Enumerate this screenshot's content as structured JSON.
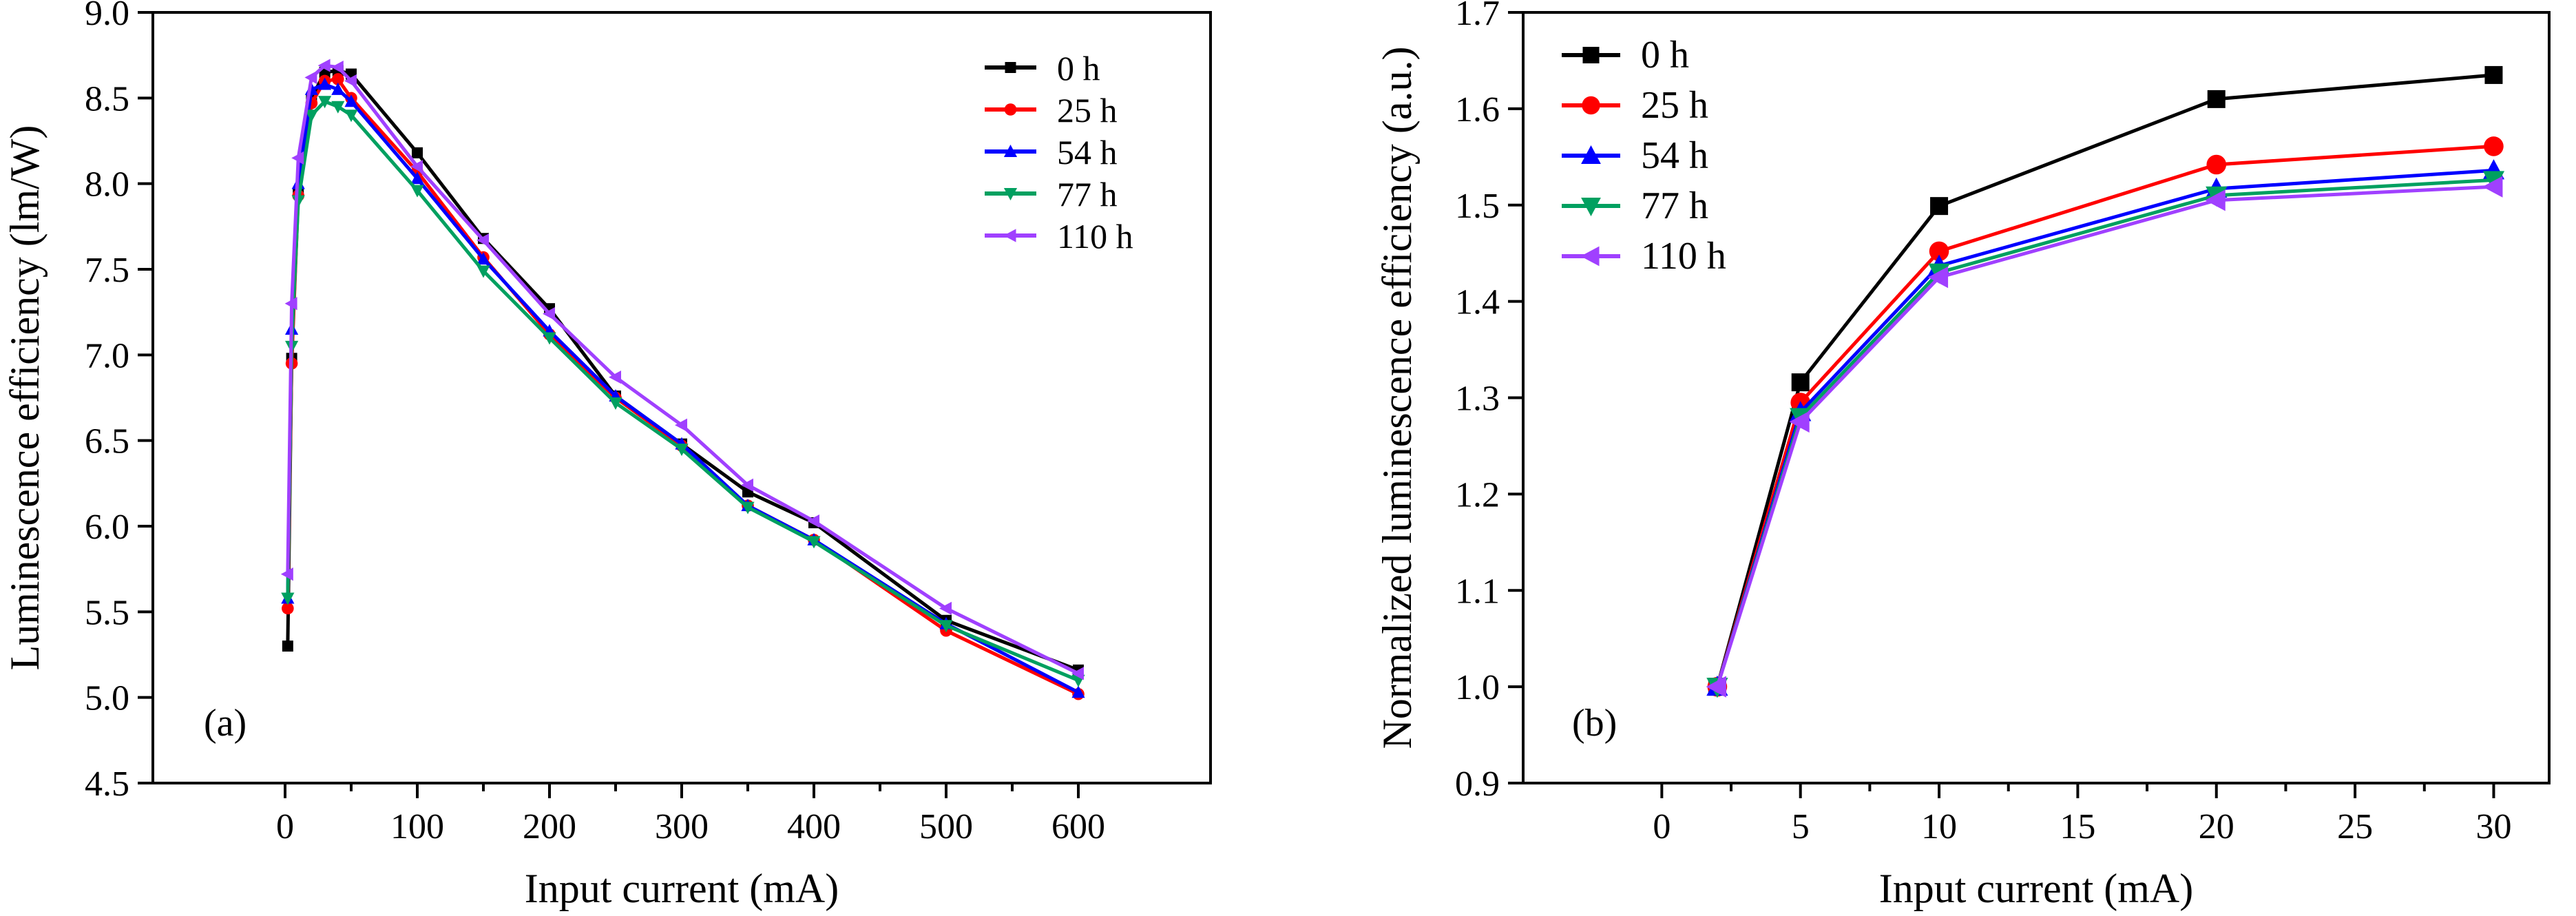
{
  "chart_data": [
    {
      "panel": "(a)",
      "type": "line",
      "xlabel": "Input current (mA)",
      "ylabel": "Luminescence efficiency (lm/W)",
      "xlim": [
        -100,
        700
      ],
      "ylim": [
        4.5,
        9.0
      ],
      "xticks": [
        "0",
        "100",
        "200",
        "300",
        "400",
        "500",
        "600"
      ],
      "yticks": [
        "4.5",
        "5.0",
        "5.5",
        "6.0",
        "6.5",
        "7.0",
        "7.5",
        "8.0",
        "8.5",
        "9.0"
      ],
      "grid": false,
      "legend_position": "top-right",
      "x": [
        2,
        5,
        10,
        20,
        30,
        40,
        50,
        100,
        150,
        200,
        250,
        300,
        350,
        400,
        500,
        600
      ],
      "series": [
        {
          "name": "0 h",
          "color": "#000000",
          "marker": "square",
          "values": [
            5.3,
            6.98,
            7.95,
            8.5,
            8.65,
            8.66,
            8.64,
            8.18,
            7.68,
            7.27,
            6.76,
            6.48,
            6.2,
            6.02,
            5.45,
            5.16
          ]
        },
        {
          "name": "25 h",
          "color": "#ff0000",
          "marker": "circle",
          "values": [
            5.52,
            6.95,
            7.93,
            8.47,
            8.6,
            8.61,
            8.5,
            8.07,
            7.57,
            7.12,
            6.75,
            6.47,
            6.12,
            5.92,
            5.39,
            5.02
          ]
        },
        {
          "name": "54 h",
          "color": "#0000ff",
          "marker": "triangle-up",
          "values": [
            5.58,
            7.15,
            8.0,
            8.55,
            8.58,
            8.55,
            8.48,
            8.03,
            7.56,
            7.14,
            6.76,
            6.48,
            6.12,
            5.92,
            5.43,
            5.03
          ]
        },
        {
          "name": "77 h",
          "color": "#00a060",
          "marker": "triangle-down",
          "values": [
            5.58,
            7.05,
            7.9,
            8.4,
            8.48,
            8.45,
            8.4,
            7.96,
            7.49,
            7.1,
            6.72,
            6.45,
            6.11,
            5.91,
            5.42,
            5.1
          ]
        },
        {
          "name": "110 h",
          "color": "#a040ff",
          "marker": "triangle-left",
          "values": [
            5.72,
            7.3,
            8.15,
            8.62,
            8.69,
            8.68,
            8.6,
            8.1,
            7.67,
            7.24,
            6.87,
            6.59,
            6.24,
            6.03,
            5.52,
            5.14
          ]
        }
      ]
    },
    {
      "panel": "(b)",
      "type": "line",
      "xlabel": "Input current (mA)",
      "ylabel": "Normalized luminescence efficiency (a.u.)",
      "xlim": [
        -5,
        32
      ],
      "ylim": [
        0.9,
        1.7
      ],
      "xticks": [
        "0",
        "5",
        "10",
        "15",
        "20",
        "25",
        "30"
      ],
      "yticks": [
        "0.9",
        "1.0",
        "1.1",
        "1.2",
        "1.3",
        "1.4",
        "1.5",
        "1.6",
        "1.7"
      ],
      "grid": false,
      "legend_position": "top-left",
      "x": [
        2,
        5,
        10,
        20,
        30
      ],
      "series": [
        {
          "name": "0 h",
          "color": "#000000",
          "marker": "square",
          "values": [
            1.0,
            1.316,
            1.499,
            1.61,
            1.635
          ]
        },
        {
          "name": "25 h",
          "color": "#ff0000",
          "marker": "circle",
          "values": [
            1.0,
            1.295,
            1.452,
            1.542,
            1.561
          ]
        },
        {
          "name": "54 h",
          "color": "#0000ff",
          "marker": "triangle-up",
          "values": [
            1.0,
            1.285,
            1.437,
            1.517,
            1.536
          ]
        },
        {
          "name": "77 h",
          "color": "#00a060",
          "marker": "triangle-down",
          "values": [
            1.0,
            1.28,
            1.43,
            1.51,
            1.526
          ]
        },
        {
          "name": "110 h",
          "color": "#a040ff",
          "marker": "triangle-left",
          "values": [
            1.0,
            1.275,
            1.425,
            1.505,
            1.519
          ]
        }
      ]
    }
  ]
}
